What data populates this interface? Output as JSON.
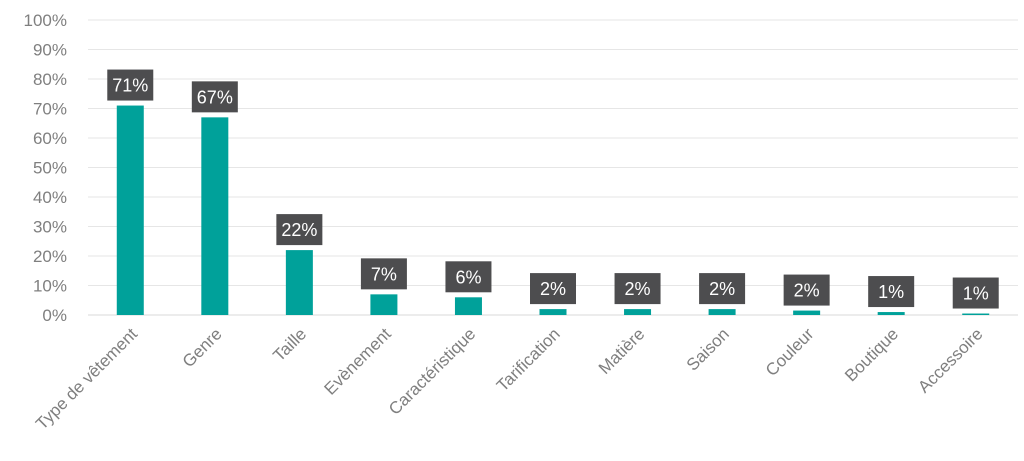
{
  "chart_data": {
    "type": "bar",
    "title": "",
    "xlabel": "",
    "ylabel": "",
    "categories": [
      "Type de vêtement",
      "Genre",
      "Taille",
      "Evènement",
      "Caractéristique",
      "Tarification",
      "Matière",
      "Saison",
      "Couleur",
      "Boutique",
      "Accessoire"
    ],
    "values": [
      71,
      67,
      22,
      7,
      6,
      2,
      2,
      2,
      1.5,
      1,
      0.5
    ],
    "data_labels": [
      "71%",
      "67%",
      "22%",
      "7%",
      "6%",
      "2%",
      "2%",
      "2%",
      "2%",
      "1%",
      "1%"
    ],
    "ylim": [
      0,
      100
    ],
    "y_ticks": [
      "0%",
      "10%",
      "20%",
      "30%",
      "40%",
      "50%",
      "60%",
      "70%",
      "80%",
      "90%",
      "100%"
    ],
    "grid": true,
    "legend": "none",
    "colors": {
      "bar": "#00a19a",
      "label_bg": "#4d4d4f",
      "label_text": "#ffffff",
      "axis_text": "#7f7f7f",
      "grid": "#e6e6e6"
    }
  }
}
